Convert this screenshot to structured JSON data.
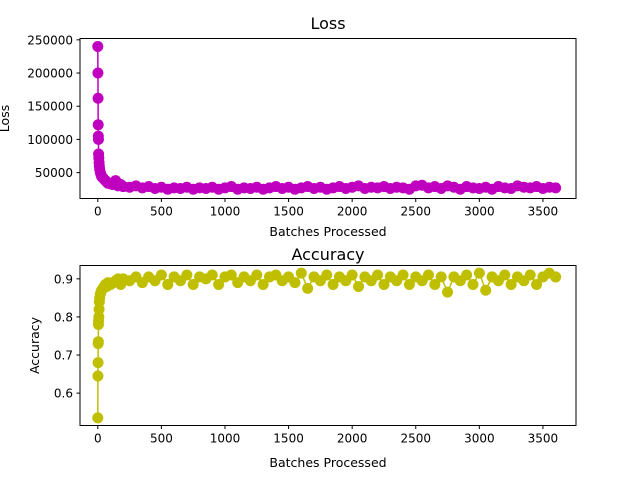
{
  "chart_data": [
    {
      "type": "line",
      "title": "Loss",
      "xlabel": "Batches Processed",
      "ylabel": "Loss",
      "xlim": [
        -140,
        3760
      ],
      "ylim": [
        11000,
        252000
      ],
      "xticks": [
        0,
        500,
        1000,
        1500,
        2000,
        2500,
        3000,
        3500
      ],
      "yticks": [
        50000,
        100000,
        150000,
        200000,
        250000
      ],
      "grid": false,
      "marker": "circle",
      "color": "#bf00bf",
      "series": [
        {
          "points": [
            [
              0,
              240000
            ],
            [
              1,
              200000
            ],
            [
              2,
              162000
            ],
            [
              3,
              122000
            ],
            [
              4,
              105000
            ],
            [
              5,
              100000
            ],
            [
              6,
              78000
            ],
            [
              8,
              72000
            ],
            [
              10,
              65000
            ],
            [
              12,
              60000
            ],
            [
              15,
              55000
            ],
            [
              20,
              50000
            ],
            [
              25,
              47000
            ],
            [
              30,
              44000
            ],
            [
              40,
              42000
            ],
            [
              50,
              40000
            ],
            [
              60,
              38000
            ],
            [
              70,
              36000
            ],
            [
              80,
              34000
            ],
            [
              100,
              33000
            ],
            [
              120,
              32000
            ],
            [
              140,
              38000
            ],
            [
              160,
              30000
            ],
            [
              180,
              32000
            ],
            [
              200,
              29000
            ],
            [
              250,
              28000
            ],
            [
              300,
              30000
            ],
            [
              350,
              27000
            ],
            [
              400,
              29000
            ],
            [
              450,
              26000
            ],
            [
              500,
              28000
            ],
            [
              550,
              25000
            ],
            [
              600,
              27000
            ],
            [
              650,
              26000
            ],
            [
              700,
              28000
            ],
            [
              750,
              25000
            ],
            [
              800,
              27000
            ],
            [
              850,
              26000
            ],
            [
              900,
              28000
            ],
            [
              950,
              25000
            ],
            [
              1000,
              27000
            ],
            [
              1050,
              29000
            ],
            [
              1100,
              25000
            ],
            [
              1150,
              27000
            ],
            [
              1200,
              26000
            ],
            [
              1250,
              28000
            ],
            [
              1300,
              25000
            ],
            [
              1350,
              27000
            ],
            [
              1400,
              29000
            ],
            [
              1450,
              26000
            ],
            [
              1500,
              28000
            ],
            [
              1550,
              25000
            ],
            [
              1600,
              27000
            ],
            [
              1650,
              29000
            ],
            [
              1700,
              26000
            ],
            [
              1750,
              28000
            ],
            [
              1800,
              25000
            ],
            [
              1850,
              27000
            ],
            [
              1900,
              29000
            ],
            [
              1950,
              26000
            ],
            [
              2000,
              28000
            ],
            [
              2050,
              30000
            ],
            [
              2100,
              26000
            ],
            [
              2150,
              28000
            ],
            [
              2200,
              27000
            ],
            [
              2250,
              29000
            ],
            [
              2300,
              26000
            ],
            [
              2350,
              28000
            ],
            [
              2400,
              27000
            ],
            [
              2450,
              25000
            ],
            [
              2500,
              30000
            ],
            [
              2550,
              31000
            ],
            [
              2600,
              27000
            ],
            [
              2650,
              29000
            ],
            [
              2700,
              26000
            ],
            [
              2750,
              30000
            ],
            [
              2800,
              28000
            ],
            [
              2850,
              25000
            ],
            [
              2900,
              29000
            ],
            [
              2950,
              27000
            ],
            [
              3000,
              26000
            ],
            [
              3050,
              28000
            ],
            [
              3100,
              25000
            ],
            [
              3150,
              29000
            ],
            [
              3200,
              27000
            ],
            [
              3250,
              26000
            ],
            [
              3300,
              30000
            ],
            [
              3350,
              28000
            ],
            [
              3400,
              27000
            ],
            [
              3450,
              29000
            ],
            [
              3500,
              26000
            ],
            [
              3550,
              28000
            ],
            [
              3600,
              27000
            ]
          ]
        }
      ]
    },
    {
      "type": "line",
      "title": "Accuracy",
      "xlabel": "Batches Processed",
      "ylabel": "Accuracy",
      "xlim": [
        -140,
        3760
      ],
      "ylim": [
        0.515,
        0.935
      ],
      "xticks": [
        0,
        500,
        1000,
        1500,
        2000,
        2500,
        3000,
        3500
      ],
      "yticks": [
        0.6,
        0.7,
        0.8,
        0.9
      ],
      "grid": false,
      "marker": "circle",
      "color": "#bfbf00",
      "series": [
        {
          "points": [
            [
              0,
              0.535
            ],
            [
              1,
              0.645
            ],
            [
              2,
              0.68
            ],
            [
              3,
              0.73
            ],
            [
              4,
              0.735
            ],
            [
              5,
              0.78
            ],
            [
              6,
              0.79
            ],
            [
              8,
              0.8
            ],
            [
              10,
              0.82
            ],
            [
              12,
              0.84
            ],
            [
              15,
              0.85
            ],
            [
              20,
              0.86
            ],
            [
              25,
              0.865
            ],
            [
              30,
              0.87
            ],
            [
              40,
              0.875
            ],
            [
              50,
              0.88
            ],
            [
              60,
              0.885
            ],
            [
              70,
              0.88
            ],
            [
              80,
              0.89
            ],
            [
              100,
              0.885
            ],
            [
              120,
              0.89
            ],
            [
              140,
              0.895
            ],
            [
              160,
              0.9
            ],
            [
              180,
              0.885
            ],
            [
              200,
              0.9
            ],
            [
              250,
              0.895
            ],
            [
              300,
              0.905
            ],
            [
              350,
              0.89
            ],
            [
              400,
              0.905
            ],
            [
              450,
              0.895
            ],
            [
              500,
              0.91
            ],
            [
              550,
              0.885
            ],
            [
              600,
              0.905
            ],
            [
              650,
              0.895
            ],
            [
              700,
              0.91
            ],
            [
              750,
              0.885
            ],
            [
              800,
              0.905
            ],
            [
              850,
              0.9
            ],
            [
              900,
              0.91
            ],
            [
              950,
              0.885
            ],
            [
              1000,
              0.905
            ],
            [
              1050,
              0.91
            ],
            [
              1100,
              0.89
            ],
            [
              1150,
              0.905
            ],
            [
              1200,
              0.895
            ],
            [
              1250,
              0.91
            ],
            [
              1300,
              0.885
            ],
            [
              1350,
              0.905
            ],
            [
              1400,
              0.91
            ],
            [
              1450,
              0.895
            ],
            [
              1500,
              0.905
            ],
            [
              1550,
              0.89
            ],
            [
              1600,
              0.915
            ],
            [
              1650,
              0.875
            ],
            [
              1700,
              0.905
            ],
            [
              1750,
              0.895
            ],
            [
              1800,
              0.91
            ],
            [
              1850,
              0.885
            ],
            [
              1900,
              0.905
            ],
            [
              1950,
              0.895
            ],
            [
              2000,
              0.91
            ],
            [
              2050,
              0.88
            ],
            [
              2100,
              0.905
            ],
            [
              2150,
              0.895
            ],
            [
              2200,
              0.91
            ],
            [
              2250,
              0.885
            ],
            [
              2300,
              0.905
            ],
            [
              2350,
              0.895
            ],
            [
              2400,
              0.91
            ],
            [
              2450,
              0.885
            ],
            [
              2500,
              0.905
            ],
            [
              2550,
              0.895
            ],
            [
              2600,
              0.91
            ],
            [
              2650,
              0.885
            ],
            [
              2700,
              0.905
            ],
            [
              2750,
              0.865
            ],
            [
              2800,
              0.905
            ],
            [
              2850,
              0.895
            ],
            [
              2900,
              0.91
            ],
            [
              2950,
              0.885
            ],
            [
              3000,
              0.915
            ],
            [
              3050,
              0.87
            ],
            [
              3100,
              0.905
            ],
            [
              3150,
              0.895
            ],
            [
              3200,
              0.91
            ],
            [
              3250,
              0.885
            ],
            [
              3300,
              0.905
            ],
            [
              3350,
              0.895
            ],
            [
              3400,
              0.91
            ],
            [
              3450,
              0.885
            ],
            [
              3500,
              0.905
            ],
            [
              3550,
              0.915
            ],
            [
              3600,
              0.905
            ]
          ]
        }
      ]
    }
  ]
}
